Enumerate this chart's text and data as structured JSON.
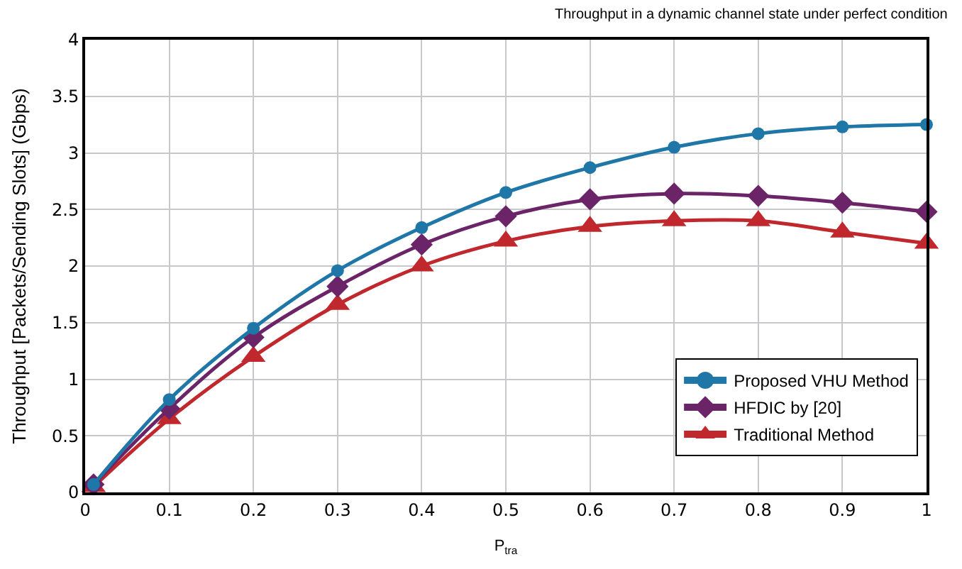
{
  "chart_data": {
    "type": "line",
    "title": "Throughput in a dynamic channel state under perfect condition",
    "xlabel": "P$_{tra}$",
    "ylabel": "Throughput [Packets/Sending Slots] (Gbps)",
    "x": [
      0.01,
      0.1,
      0.2,
      0.3,
      0.4,
      0.5,
      0.6,
      0.7,
      0.8,
      0.9,
      1
    ],
    "series": [
      {
        "name": "Proposed VHU Method",
        "color": "#1f77a8",
        "marker": "circle",
        "values": [
          0.07,
          0.82,
          1.45,
          1.96,
          2.34,
          2.65,
          2.87,
          3.05,
          3.17,
          3.23,
          3.25
        ]
      },
      {
        "name": "HFDIC by [20]",
        "color": "#6b2468",
        "marker": "diamond",
        "values": [
          0.07,
          0.74,
          1.37,
          1.82,
          2.19,
          2.44,
          2.59,
          2.64,
          2.62,
          2.56,
          2.48
        ]
      },
      {
        "name": "Traditional Method",
        "color": "#c0282d",
        "marker": "triangle",
        "values": [
          0.05,
          0.65,
          1.2,
          1.66,
          2.0,
          2.22,
          2.35,
          2.4,
          2.4,
          2.3,
          2.2
        ]
      }
    ],
    "xlim": [
      0,
      1
    ],
    "xticks": [
      0,
      0.1,
      0.2,
      0.3,
      0.4,
      0.5,
      0.6,
      0.7,
      0.8,
      0.9,
      1
    ],
    "ylim": [
      0,
      4
    ],
    "yticks": [
      0,
      0.5,
      1,
      1.5,
      2,
      2.5,
      3,
      3.5,
      4
    ],
    "grid": true,
    "legend": "bottom right",
    "line_style": "solid"
  }
}
